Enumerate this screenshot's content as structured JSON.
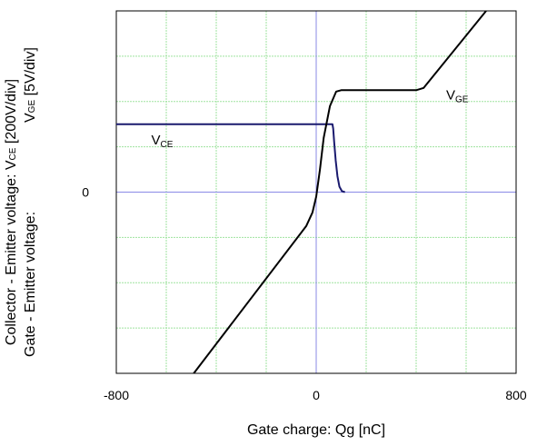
{
  "chart_data": {
    "type": "line",
    "xlabel": "Gate charge: Qg [nC]",
    "ylabel_line1": "Collector - Emitter voltage: V",
    "ylabel_line1_sub": "CE",
    "ylabel_line1_unit": " [200V/div]",
    "ylabel_line2": "Gate - Emitter voltage:",
    "ylabel_line2_extra": "V",
    "ylabel_line2_sub": "GE",
    "ylabel_line2_unit": " [5V/div]",
    "xlim": [
      -800,
      800
    ],
    "ylim": [
      -4,
      4
    ],
    "x_ticks": [
      {
        "value": -800,
        "label": "-800"
      },
      {
        "value": 0,
        "label": "0"
      },
      {
        "value": 800,
        "label": "800"
      }
    ],
    "y_ticks": [
      {
        "value": 0,
        "label": "0"
      }
    ],
    "grid": true,
    "x_grid_step": 200,
    "y_grid_step": 1,
    "annotations": [
      {
        "id": "vce",
        "main": "V",
        "sub": "CE",
        "x": -660,
        "y": 1.05
      },
      {
        "id": "vge",
        "main": "V",
        "sub": "GE",
        "x": 520,
        "y": 2.05
      }
    ],
    "series": [
      {
        "id": "vce-curve",
        "color": "#1a1a6e",
        "points": [
          [
            -800,
            1.5
          ],
          [
            65,
            1.5
          ],
          [
            68,
            1.4
          ],
          [
            72,
            1.1
          ],
          [
            78,
            0.7
          ],
          [
            85,
            0.35
          ],
          [
            93,
            0.12
          ],
          [
            103,
            0.02
          ],
          [
            115,
            0.0
          ]
        ]
      },
      {
        "id": "vge-curve",
        "color": "#000000",
        "points": [
          [
            -490,
            -4.0
          ],
          [
            -40,
            -0.75
          ],
          [
            -15,
            -0.45
          ],
          [
            0,
            -0.1
          ],
          [
            15,
            0.5
          ],
          [
            30,
            1.2
          ],
          [
            55,
            1.9
          ],
          [
            80,
            2.22
          ],
          [
            100,
            2.25
          ],
          [
            400,
            2.25
          ],
          [
            430,
            2.3
          ],
          [
            680,
            4.0
          ]
        ]
      }
    ]
  }
}
